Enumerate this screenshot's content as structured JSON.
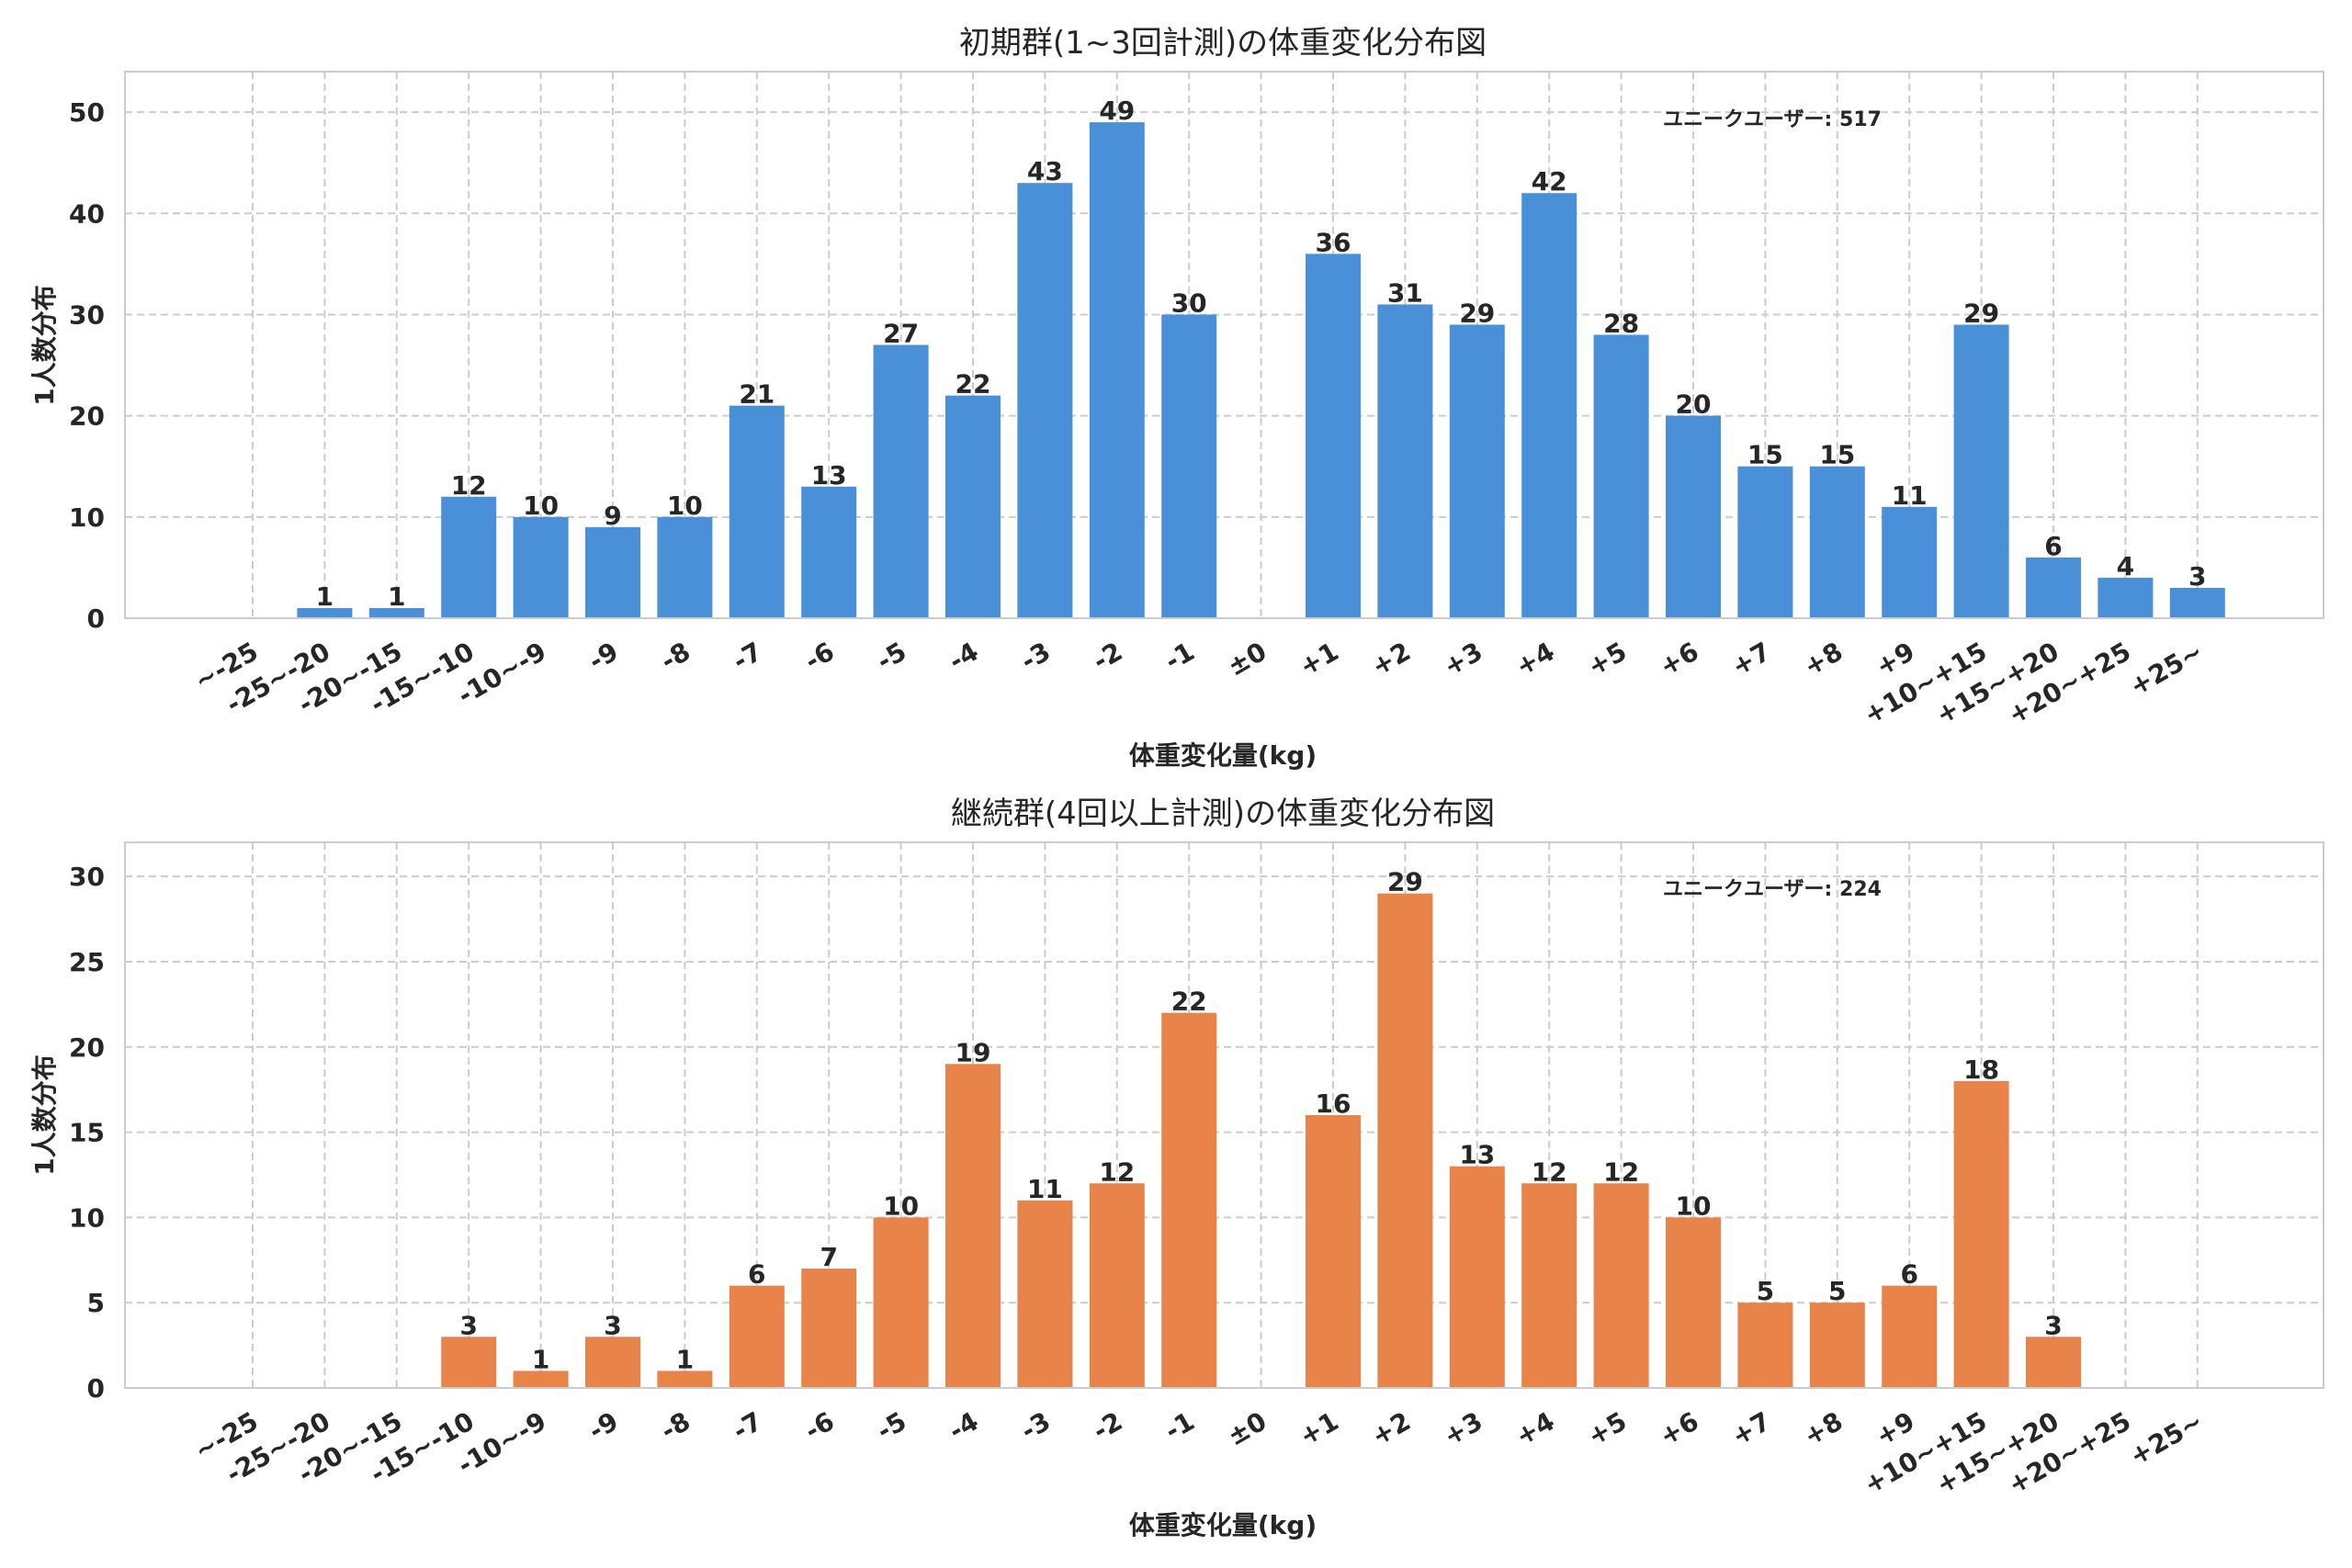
{
  "chart_data": [
    {
      "type": "bar",
      "title": "初期群(1~3回計測)の体重変化分布図",
      "xlabel": "体重変化量(kg)",
      "ylabel": "1人数分布",
      "ylim": [
        0,
        54
      ],
      "yticks": [
        0,
        10,
        20,
        30,
        40,
        50
      ],
      "color": "#4a90d9",
      "annotation": "ユニークユーザー: 517",
      "categories": [
        "~-25",
        "-25~-20",
        "-20~-15",
        "-15~-10",
        "-10~-9",
        "-9",
        "-8",
        "-7",
        "-6",
        "-5",
        "-4",
        "-3",
        "-2",
        "-1",
        "±0",
        "+1",
        "+2",
        "+3",
        "+4",
        "+5",
        "+6",
        "+7",
        "+8",
        "+9",
        "+10~+15",
        "+15~+20",
        "+20~+25",
        "+25~"
      ],
      "values": [
        0,
        1,
        1,
        12,
        10,
        9,
        10,
        21,
        13,
        27,
        22,
        43,
        49,
        30,
        0,
        36,
        31,
        29,
        42,
        28,
        20,
        15,
        15,
        11,
        29,
        6,
        4,
        3
      ]
    },
    {
      "type": "bar",
      "title": "継続群(4回以上計測)の体重変化分布図",
      "xlabel": "体重変化量(kg)",
      "ylabel": "1人数分布",
      "ylim": [
        0,
        32
      ],
      "yticks": [
        0,
        5,
        10,
        15,
        20,
        25,
        30
      ],
      "color": "#e8834a",
      "annotation": "ユニークユーザー: 224",
      "categories": [
        "~-25",
        "-25~-20",
        "-20~-15",
        "-15~-10",
        "-10~-9",
        "-9",
        "-8",
        "-7",
        "-6",
        "-5",
        "-4",
        "-3",
        "-2",
        "-1",
        "±0",
        "+1",
        "+2",
        "+3",
        "+4",
        "+5",
        "+6",
        "+7",
        "+8",
        "+9",
        "+10~+15",
        "+15~+20",
        "+20~+25",
        "+25~"
      ],
      "values": [
        0,
        0,
        0,
        3,
        1,
        3,
        1,
        6,
        7,
        10,
        19,
        11,
        12,
        22,
        0,
        16,
        29,
        13,
        12,
        12,
        10,
        5,
        5,
        6,
        18,
        3,
        0,
        0
      ]
    }
  ]
}
